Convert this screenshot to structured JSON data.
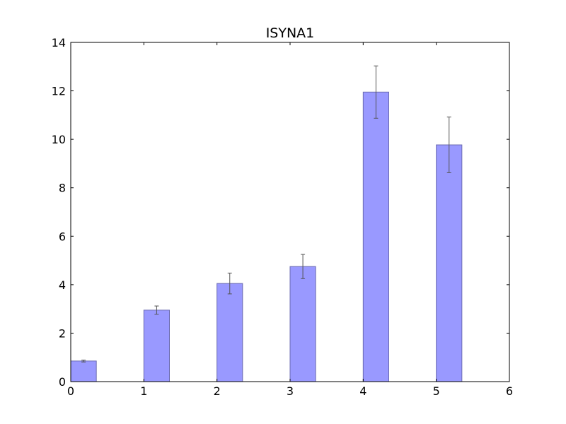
{
  "chart_data": {
    "type": "bar",
    "title": "ISYNA1",
    "xlabel": "",
    "ylabel": "",
    "x_ticks": [
      "0",
      "1",
      "2",
      "3",
      "4",
      "5",
      "6"
    ],
    "y_ticks": [
      "0",
      "2",
      "4",
      "6",
      "8",
      "10",
      "12",
      "14"
    ],
    "xlim": [
      0,
      6
    ],
    "ylim": [
      0,
      14
    ],
    "grid": false,
    "bar_color": "#9999ff",
    "bar_edge_color": "#6a6ab0",
    "errorbar_color": "#555555",
    "bar_width": 0.35,
    "bars": [
      {
        "x": 0,
        "value": 0.85,
        "error": 0.04
      },
      {
        "x": 1,
        "value": 2.95,
        "error": 0.17
      },
      {
        "x": 2,
        "value": 4.05,
        "error": 0.43
      },
      {
        "x": 3,
        "value": 4.75,
        "error": 0.5
      },
      {
        "x": 4,
        "value": 11.95,
        "error": 1.08
      },
      {
        "x": 5,
        "value": 9.77,
        "error": 1.15
      }
    ]
  }
}
